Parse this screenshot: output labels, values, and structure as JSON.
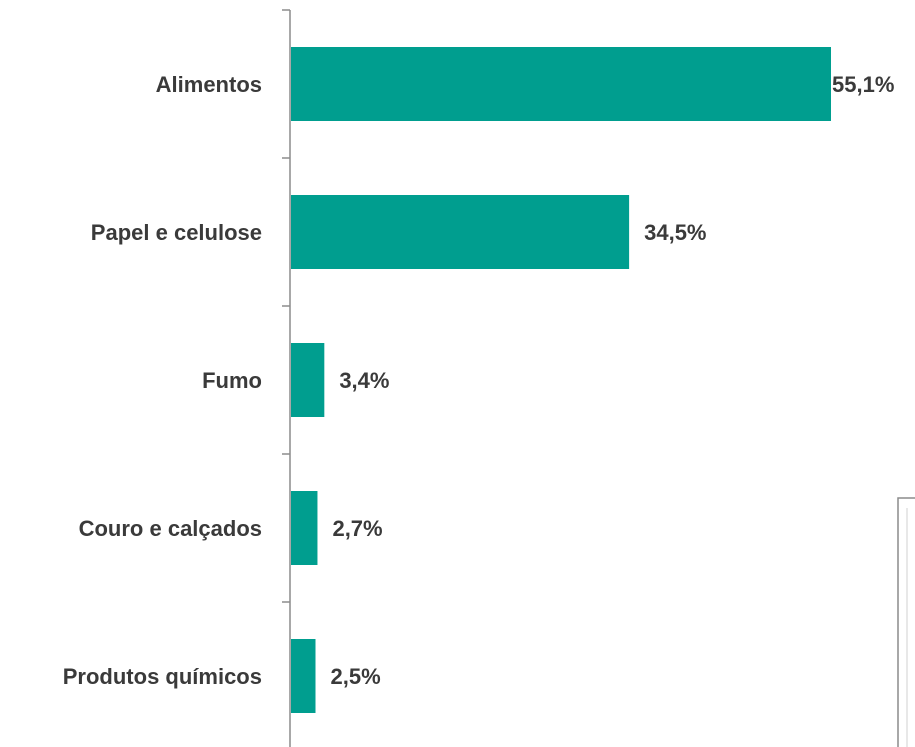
{
  "chart_data": {
    "type": "bar",
    "orientation": "horizontal",
    "categories": [
      "Alimentos",
      "Papel e celulose",
      "Fumo",
      "Couro e calçados",
      "Produtos químicos"
    ],
    "values": [
      55.1,
      34.5,
      3.4,
      2.7,
      2.5
    ],
    "value_labels": [
      "55,1%",
      "34,5%",
      "3,4%",
      "2,7%",
      "2,5%"
    ],
    "unit": "%",
    "xlim": [
      0,
      55.1
    ],
    "grid": false,
    "legend": "none",
    "bar_color": "#009e8f",
    "text_color": "#3a3a3a",
    "axis_color": "#8c8c8c"
  }
}
